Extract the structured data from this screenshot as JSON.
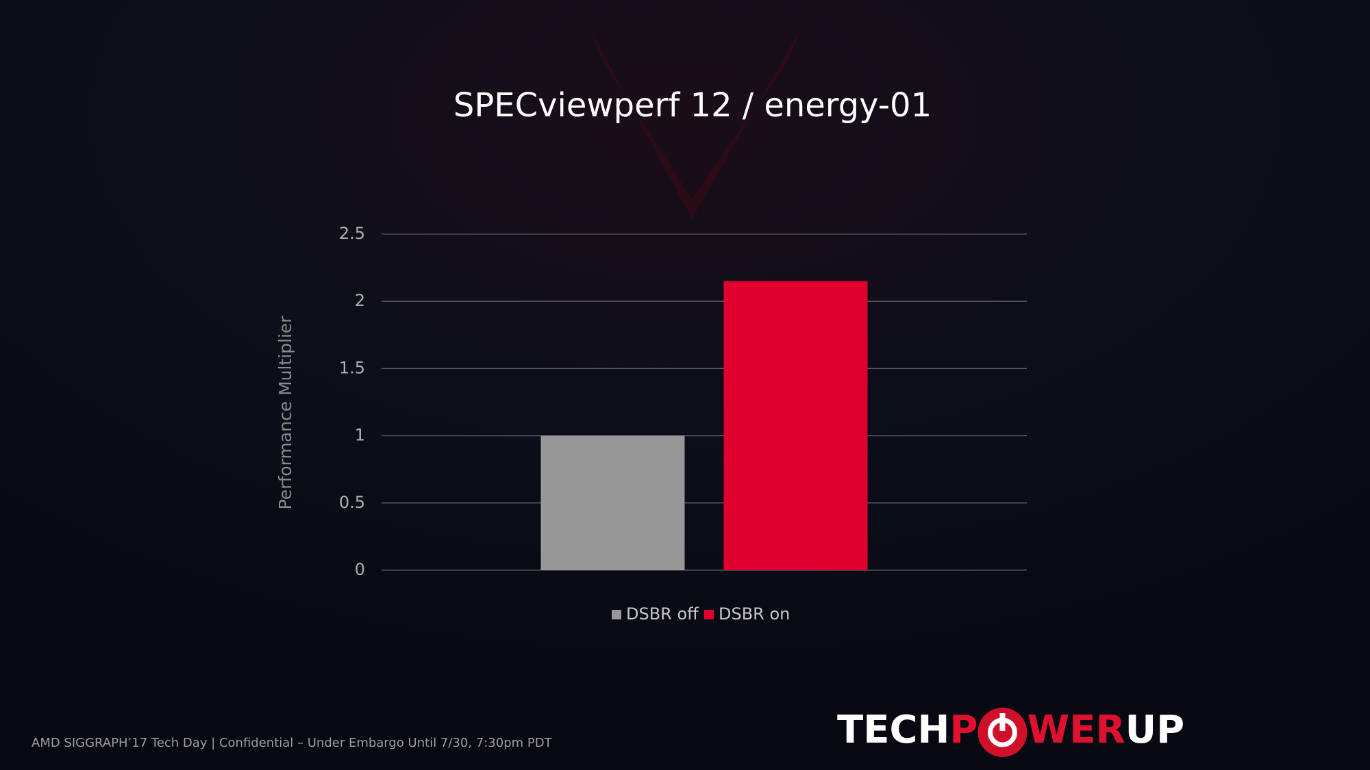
{
  "chart_data": {
    "type": "bar",
    "title": "SPECviewperf 12 / energy-01",
    "ylabel": "Performance Multiplier",
    "categories": [
      null
    ],
    "series": [
      {
        "name": "DSBR off",
        "color": "#979797",
        "values": [
          1.0
        ]
      },
      {
        "name": "DSBR on",
        "color": "#e0002f",
        "values": [
          2.15
        ]
      }
    ],
    "ylim": [
      0,
      2.5
    ],
    "yticks": [
      0,
      0.5,
      1,
      1.5,
      2,
      2.5
    ],
    "grid": true,
    "legend": "bottom"
  },
  "footer": "AMD SIGGRAPH’17 Tech Day | Confidential – Under Embargo Until 7/30, 7:30pm PDT",
  "watermark": [
    "TECH",
    "P",
    "WER",
    "UP"
  ]
}
